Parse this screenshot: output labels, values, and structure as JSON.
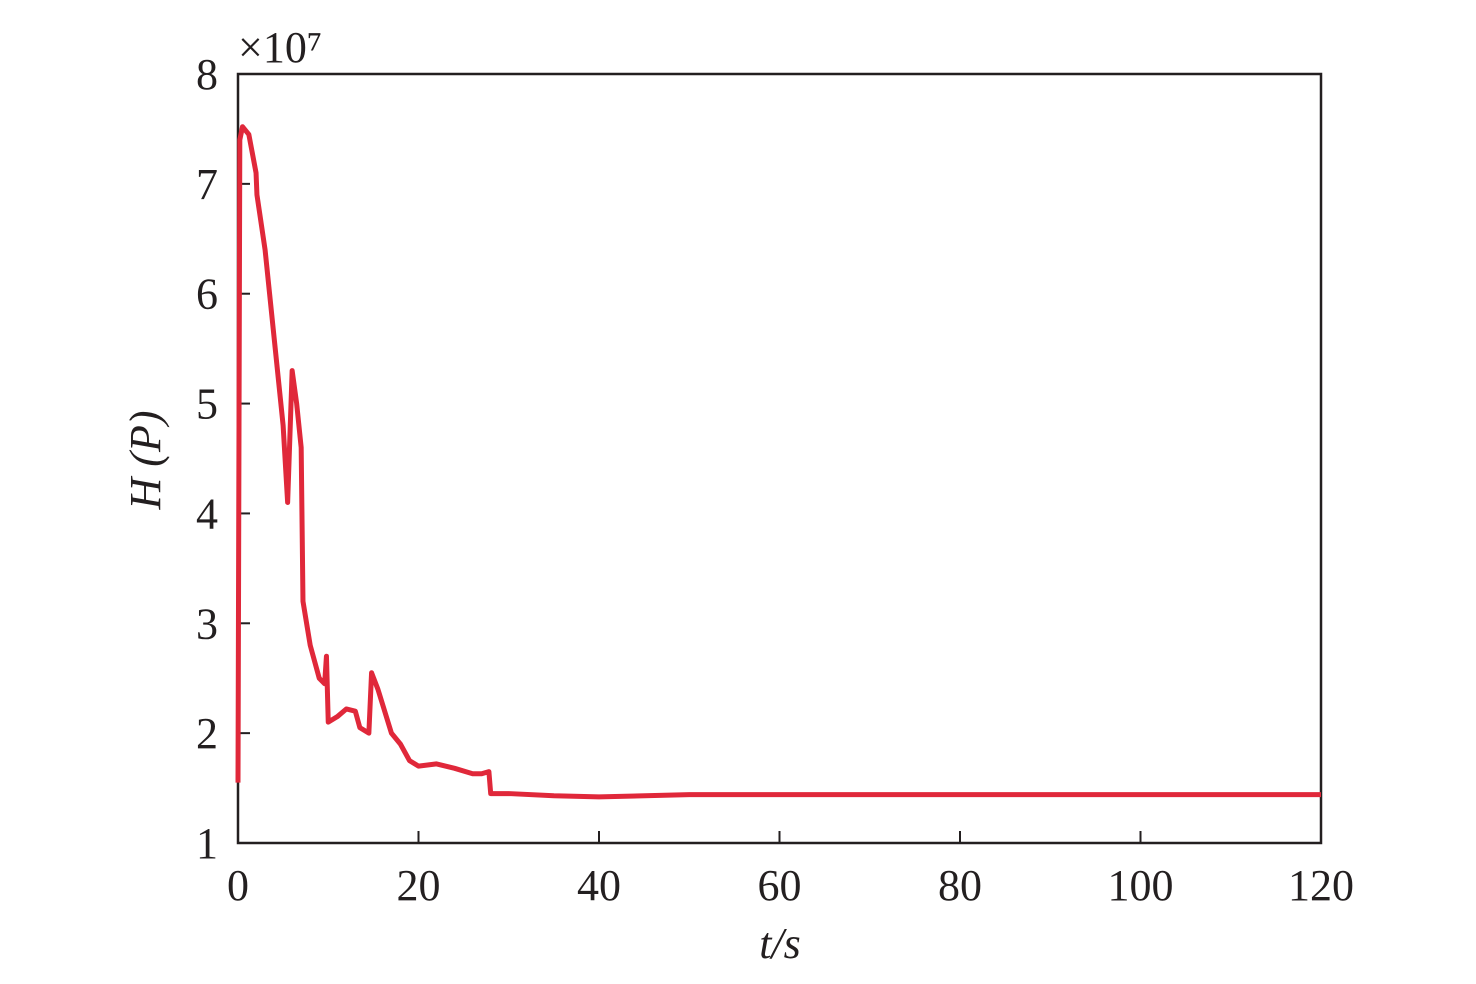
{
  "chart_data": {
    "type": "line",
    "xlabel": "t/s",
    "ylabel": "H (P)",
    "y_multiplier": "×10⁷",
    "x": [
      0,
      0.2,
      0.5,
      1.2,
      2,
      2.1,
      3,
      3.5,
      4,
      5,
      5.5,
      6,
      6.5,
      7,
      7.2,
      8,
      9,
      9.6,
      9.8,
      10,
      11,
      12,
      13,
      13.5,
      14.5,
      14.8,
      15.5,
      17,
      18,
      19,
      20,
      22,
      24,
      26,
      27,
      27.8,
      28,
      30,
      35,
      40,
      50,
      60,
      80,
      100,
      120
    ],
    "series": [
      {
        "color": "#e0283a",
        "values": [
          1.55,
          7.4,
          7.52,
          7.45,
          7.1,
          6.9,
          6.4,
          6.0,
          5.6,
          4.8,
          4.1,
          5.3,
          5.0,
          4.6,
          3.2,
          2.8,
          2.5,
          2.45,
          2.7,
          2.1,
          2.15,
          2.22,
          2.2,
          2.05,
          2.0,
          2.55,
          2.4,
          2.0,
          1.9,
          1.75,
          1.7,
          1.72,
          1.68,
          1.63,
          1.63,
          1.65,
          1.45,
          1.45,
          1.43,
          1.42,
          1.44,
          1.44,
          1.44,
          1.44,
          1.44
        ]
      }
    ],
    "xlim": [
      0,
      120
    ],
    "xticks": [
      0,
      20,
      40,
      60,
      80,
      100,
      120
    ],
    "ylim": [
      1,
      8
    ],
    "yticks": [
      1,
      2,
      3,
      4,
      5,
      6,
      7,
      8
    ]
  }
}
